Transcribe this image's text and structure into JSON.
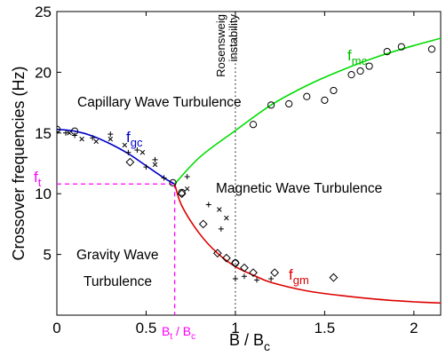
{
  "chart_data": {
    "type": "scatter",
    "xlabel": "B / B",
    "xlabel_sub": "c",
    "ylabel": "Crossover frequencies (Hz)",
    "xlim": [
      0,
      2.15
    ],
    "ylim": [
      0,
      25
    ],
    "x_ticks": [
      0,
      0.5,
      1,
      1.5,
      2
    ],
    "x_tick_labels": [
      "0",
      "0.5",
      "1",
      "1.5",
      "2"
    ],
    "y_ticks": [
      5,
      10,
      15,
      20,
      25
    ],
    "y_tick_labels": [
      "5",
      "10",
      "15",
      "20",
      "25"
    ],
    "grid": false,
    "legend": "none",
    "colors": {
      "gc": "#0000cc",
      "mc": "#00dd00",
      "gm": "#dd0000",
      "threshold": "#ff00ff",
      "markers": "#000000",
      "axes": "#000000"
    },
    "annotations": {
      "rosensweig": [
        "Rosensweig",
        "instability"
      ],
      "capillary": "Capillary Wave Turbulence",
      "magnetic": "Magnetic Wave Turbulence",
      "gravity": [
        "Gravity Wave",
        "Turbulence"
      ],
      "f_gc": {
        "base": "f",
        "sub": "gc"
      },
      "f_mc": {
        "base": "f",
        "sub": "mc"
      },
      "f_gm": {
        "base": "f",
        "sub": "gm"
      },
      "f_t": {
        "base": "f",
        "sub": "t"
      },
      "bt_bc": {
        "a": "B",
        "a_sub": "t",
        "sep": " / ",
        "b": "B",
        "b_sub": "c"
      }
    },
    "rosensweig_x": 1,
    "threshold": {
      "x": 0.66,
      "y": 10.8
    },
    "curves": [
      {
        "id": "gc",
        "x": [
          0,
          0.1,
          0.2,
          0.3,
          0.4,
          0.5,
          0.6,
          0.66
        ],
        "y": [
          15.3,
          15.15,
          14.75,
          14.1,
          13.3,
          12.3,
          11.3,
          10.8
        ]
      },
      {
        "id": "mc",
        "x": [
          0.66,
          0.8,
          1.0,
          1.2,
          1.4,
          1.6,
          1.8,
          2.0,
          2.15
        ],
        "y": [
          10.8,
          13.0,
          15.2,
          17.3,
          18.9,
          20.2,
          21.3,
          22.2,
          22.8
        ]
      },
      {
        "id": "gm",
        "x": [
          0.66,
          0.7,
          0.8,
          0.9,
          1.0,
          1.1,
          1.2,
          1.4,
          1.6,
          1.8,
          2.0,
          2.15
        ],
        "y": [
          10.8,
          9.0,
          6.7,
          5.1,
          4.0,
          3.3,
          2.7,
          2.0,
          1.6,
          1.3,
          1.1,
          1.0
        ]
      }
    ],
    "series_points": [
      {
        "marker": "circle",
        "x": [
          0,
          0.1,
          0.65,
          0.7,
          1.0,
          1.1,
          1.2,
          1.3,
          1.4,
          1.5,
          1.55,
          1.65,
          1.7,
          1.75,
          1.85,
          1.93,
          2.1
        ],
        "y": [
          15.3,
          15.15,
          10.9,
          10.1,
          4.3,
          15.7,
          17.3,
          17.4,
          18.0,
          17.7,
          18.5,
          19.8,
          20.1,
          20.5,
          21.7,
          22.1,
          21.9
        ]
      },
      {
        "marker": "diamond",
        "x": [
          0.41,
          0.7,
          0.82,
          0.9,
          0.95,
          1.0,
          1.05,
          1.1,
          1.22,
          1.55
        ],
        "y": [
          12.6,
          10.0,
          7.5,
          5.1,
          4.7,
          4.3,
          3.9,
          3.5,
          3.5,
          3.1
        ]
      },
      {
        "marker": "plus",
        "x": [
          0,
          0.05,
          0.1,
          0.2,
          0.3,
          0.4,
          0.45,
          0.5,
          0.55,
          0.6,
          0.73,
          0.85,
          0.92,
          1.0,
          1.05,
          1.12,
          1.2
        ],
        "y": [
          15.1,
          15.0,
          14.8,
          14.6,
          14.9,
          13.4,
          13.6,
          12.2,
          12.8,
          11.3,
          11.4,
          9.1,
          7.1,
          3.0,
          3.2,
          2.9,
          3.0
        ]
      },
      {
        "marker": "x",
        "x": [
          0.07,
          0.14,
          0.22,
          0.3,
          0.38,
          0.48,
          0.55,
          0.73,
          0.91,
          0.95
        ],
        "y": [
          15.0,
          14.5,
          14.3,
          14.5,
          14.0,
          13.4,
          12.4,
          10.4,
          8.7,
          8.0
        ]
      }
    ]
  }
}
